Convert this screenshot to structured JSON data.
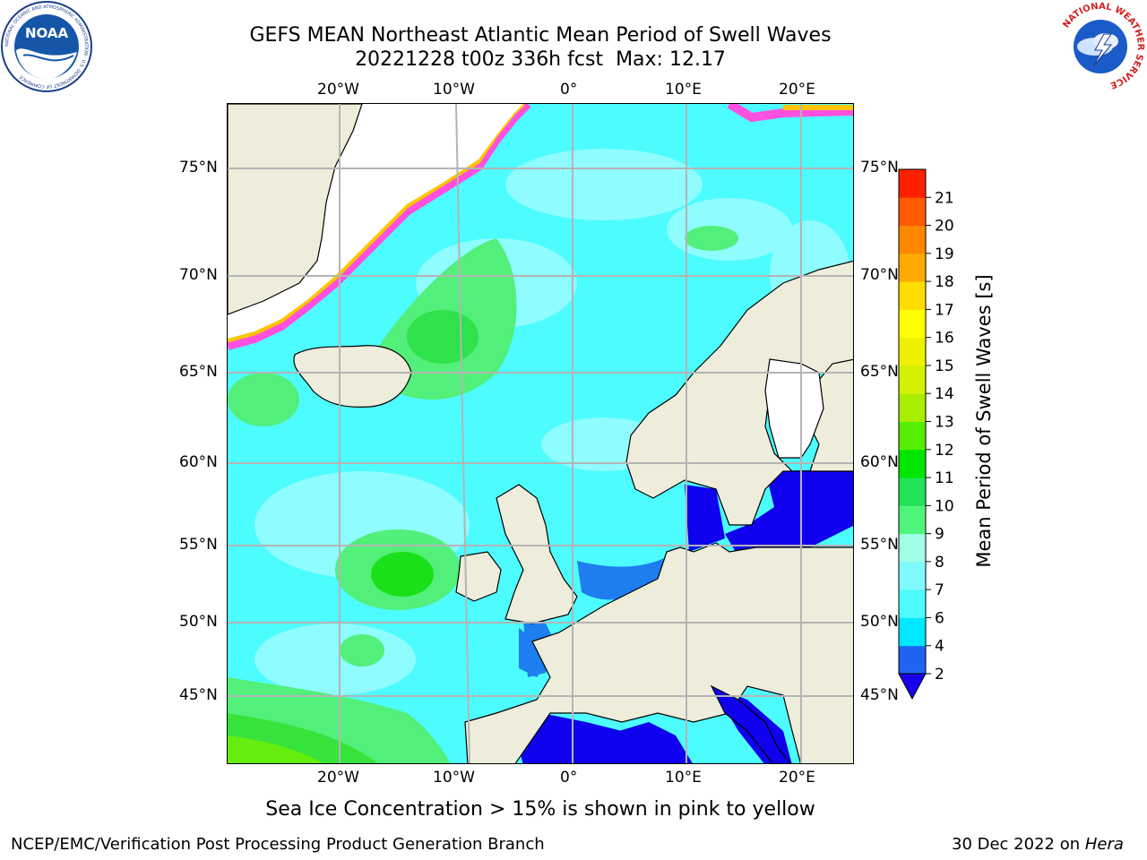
{
  "title_line1": "GEFS MEAN Northeast Atlantic Mean Period of Swell Waves",
  "title_date": "20221228 t00z 336h fcst",
  "title_max": "Max: 12.17",
  "caption": "Sea Ice Concentration > 15% is shown in pink to yellow",
  "footer_left": "NCEP/EMC/Verification Post Processing Product Generation Branch",
  "footer_date": "30 Dec 2022 on",
  "footer_host": "Hera",
  "logo_left": {
    "name": "NOAA",
    "ring_text": "NATIONAL OCEANIC AND ATMOSPHERIC ADMINISTRATION · U.S. DEPARTMENT OF COMMERCE"
  },
  "logo_right": {
    "ring_text": "NATIONAL WEATHER SERVICE"
  },
  "map": {
    "lon_labels_top": [
      "20°W",
      "10°W",
      "0°",
      "10°E",
      "20°E"
    ],
    "lon_labels_bottom": [
      "20°W",
      "10°W",
      "0°",
      "10°E",
      "20°E"
    ],
    "lat_labels_left": [
      "75°N",
      "70°N",
      "65°N",
      "60°N",
      "55°N",
      "50°N",
      "45°N"
    ],
    "lat_labels_right": [
      "75°N",
      "70°N",
      "65°N",
      "60°N",
      "55°N",
      "50°N",
      "45°N"
    ],
    "colors": {
      "land": "#eeeddc",
      "ocean_6_8": "#4dfcff",
      "ocean_8_9": "#7fffff",
      "swell_9_10": "#4ff57a",
      "swell_10_11": "#00e600",
      "swell_11_12": "#55ee00",
      "short_2_4": "#0f00ee",
      "short_4_6": "#1e7ef0",
      "ice_pink": "#ff50e0",
      "ice_yellow": "#ffc400"
    }
  },
  "colorbar": {
    "label": "Mean Period of Swell Waves [s]",
    "ticks": [
      "2",
      "4",
      "6",
      "7",
      "8",
      "9",
      "10",
      "11",
      "12",
      "13",
      "14",
      "15",
      "16",
      "17",
      "18",
      "19",
      "20",
      "21"
    ],
    "extend": "min",
    "colors": [
      "#1e64f0",
      "#00e8ff",
      "#4dfcff",
      "#7ffaff",
      "#a0ffe6",
      "#4ff57a",
      "#22e35a",
      "#00e600",
      "#55ee00",
      "#a8ee00",
      "#d2f000",
      "#eef000",
      "#ffff00",
      "#ffdd00",
      "#ffaa00",
      "#ff8800",
      "#ff5a00",
      "#ff2000"
    ],
    "extend_color": "#1800ee"
  }
}
